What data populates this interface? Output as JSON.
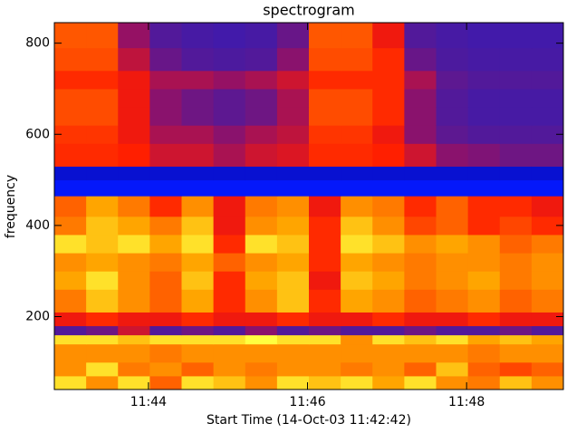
{
  "chart_data": {
    "type": "heatmap",
    "title": "spectrogram",
    "xlabel": "Start Time (14-Oct-03 11:42:42)",
    "ylabel": "frequency",
    "xlim": [
      42169,
      42553
    ],
    "ylim": [
      40,
      845
    ],
    "xticks": [
      {
        "value": 42240,
        "label": "11:44"
      },
      {
        "value": 42360,
        "label": "11:46"
      },
      {
        "value": 42480,
        "label": "11:48"
      }
    ],
    "yticks": [
      200,
      400,
      600,
      800
    ],
    "x_edges": [
      42169,
      42193,
      42217,
      42241,
      42265,
      42289,
      42313,
      42337,
      42361,
      42385,
      42409,
      42433,
      42457,
      42481,
      42505,
      42529,
      42553
    ],
    "y_edges": [
      40,
      70,
      100,
      140,
      160,
      180,
      210,
      260,
      300,
      340,
      380,
      420,
      465,
      500,
      530,
      580,
      620,
      660,
      700,
      740,
      790,
      845
    ],
    "colormap": [
      "#1c0066",
      "#0018ff",
      "#4a1aa0",
      "#9a1060",
      "#ff1a00",
      "#ff6a00",
      "#ffa800",
      "#ffff40"
    ],
    "values": [
      [
        0.95,
        0.8,
        0.95,
        0.7,
        0.95,
        0.9,
        0.8,
        0.95,
        0.9,
        0.95,
        0.85,
        0.95,
        0.8,
        0.75,
        0.9,
        0.8
      ],
      [
        0.8,
        0.95,
        0.75,
        0.8,
        0.7,
        0.8,
        0.75,
        0.8,
        0.8,
        0.75,
        0.8,
        0.7,
        0.9,
        0.7,
        0.65,
        0.7
      ],
      [
        0.8,
        0.8,
        0.8,
        0.75,
        0.8,
        0.8,
        0.8,
        0.8,
        0.8,
        0.8,
        0.8,
        0.8,
        0.8,
        0.75,
        0.8,
        0.8
      ],
      [
        0.95,
        0.95,
        0.9,
        0.95,
        0.95,
        0.95,
        1,
        0.95,
        0.95,
        0.8,
        0.95,
        0.9,
        0.95,
        0.85,
        0.9,
        0.85
      ],
      [
        0.3,
        0.35,
        0.5,
        0.3,
        0.35,
        0.3,
        0.4,
        0.3,
        0.35,
        0.3,
        0.3,
        0.35,
        0.3,
        0.3,
        0.35,
        0.3
      ],
      [
        0.55,
        0.6,
        0.55,
        0.55,
        0.6,
        0.55,
        0.55,
        0.6,
        0.55,
        0.55,
        0.6,
        0.55,
        0.55,
        0.6,
        0.55,
        0.55
      ],
      [
        0.75,
        0.9,
        0.8,
        0.7,
        0.85,
        0.6,
        0.8,
        0.9,
        0.6,
        0.85,
        0.8,
        0.7,
        0.75,
        0.8,
        0.7,
        0.75
      ],
      [
        0.85,
        0.95,
        0.8,
        0.7,
        0.9,
        0.6,
        0.85,
        0.9,
        0.55,
        0.9,
        0.85,
        0.75,
        0.8,
        0.85,
        0.75,
        0.8
      ],
      [
        0.8,
        0.85,
        0.8,
        0.75,
        0.85,
        0.7,
        0.8,
        0.85,
        0.6,
        0.85,
        0.8,
        0.75,
        0.8,
        0.8,
        0.75,
        0.8
      ],
      [
        0.95,
        0.9,
        0.95,
        0.85,
        0.95,
        0.6,
        0.95,
        0.9,
        0.6,
        0.95,
        0.9,
        0.8,
        0.85,
        0.8,
        0.7,
        0.75
      ],
      [
        0.75,
        0.9,
        0.85,
        0.75,
        0.9,
        0.55,
        0.8,
        0.85,
        0.6,
        0.9,
        0.8,
        0.65,
        0.7,
        0.6,
        0.65,
        0.6
      ],
      [
        0.7,
        0.85,
        0.75,
        0.6,
        0.8,
        0.55,
        0.75,
        0.8,
        0.55,
        0.8,
        0.75,
        0.6,
        0.7,
        0.6,
        0.6,
        0.55
      ],
      [
        0.15,
        0.15,
        0.15,
        0.15,
        0.15,
        0.15,
        0.15,
        0.15,
        0.15,
        0.15,
        0.15,
        0.15,
        0.15,
        0.15,
        0.15,
        0.15
      ],
      [
        0.1,
        0.1,
        0.1,
        0.1,
        0.1,
        0.1,
        0.1,
        0.1,
        0.1,
        0.1,
        0.1,
        0.1,
        0.1,
        0.1,
        0.1,
        0.1
      ],
      [
        0.6,
        0.6,
        0.58,
        0.5,
        0.5,
        0.45,
        0.5,
        0.52,
        0.6,
        0.6,
        0.58,
        0.5,
        0.4,
        0.38,
        0.35,
        0.35
      ],
      [
        0.62,
        0.62,
        0.55,
        0.45,
        0.45,
        0.4,
        0.45,
        0.48,
        0.62,
        0.62,
        0.55,
        0.4,
        0.32,
        0.3,
        0.3,
        0.3
      ],
      [
        0.66,
        0.66,
        0.55,
        0.4,
        0.35,
        0.32,
        0.35,
        0.45,
        0.66,
        0.66,
        0.6,
        0.4,
        0.3,
        0.28,
        0.28,
        0.28
      ],
      [
        0.66,
        0.66,
        0.55,
        0.4,
        0.35,
        0.32,
        0.35,
        0.45,
        0.66,
        0.66,
        0.6,
        0.4,
        0.3,
        0.28,
        0.28,
        0.28
      ],
      [
        0.6,
        0.6,
        0.55,
        0.45,
        0.45,
        0.42,
        0.45,
        0.5,
        0.6,
        0.6,
        0.6,
        0.45,
        0.32,
        0.3,
        0.3,
        0.3
      ],
      [
        0.66,
        0.66,
        0.48,
        0.34,
        0.3,
        0.29,
        0.3,
        0.4,
        0.66,
        0.66,
        0.6,
        0.34,
        0.29,
        0.28,
        0.28,
        0.28
      ],
      [
        0.68,
        0.68,
        0.42,
        0.3,
        0.28,
        0.27,
        0.28,
        0.34,
        0.68,
        0.68,
        0.55,
        0.3,
        0.28,
        0.27,
        0.27,
        0.27
      ]
    ]
  }
}
